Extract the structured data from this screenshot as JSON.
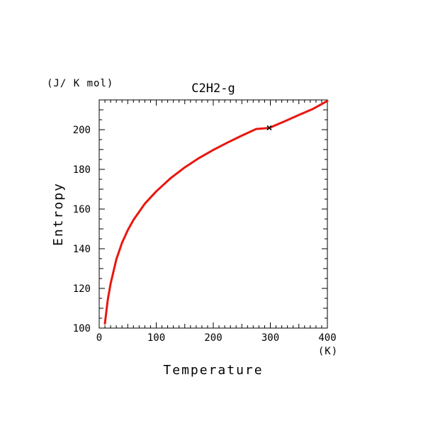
{
  "chart_data": {
    "type": "line",
    "title": "C2H2-g",
    "xlabel": "Temperature",
    "ylabel": "Entropy",
    "x_unit": "(K)",
    "y_unit": "(J/ K mol)",
    "xlim": [
      0,
      400
    ],
    "ylim": [
      100,
      215
    ],
    "x_ticks": [
      0,
      100,
      200,
      300,
      400
    ],
    "y_ticks": [
      100,
      120,
      140,
      160,
      180,
      200
    ],
    "grid": false,
    "line_color": "#e8170f",
    "marker": {
      "x": 298.15,
      "y": 200.9,
      "symbol": "x",
      "color": "#000000"
    },
    "series": [
      {
        "x": [
          10,
          15,
          20,
          30,
          40,
          50,
          60,
          80,
          100,
          125,
          150,
          175,
          200,
          225,
          250,
          275,
          298.15,
          325,
          350,
          375,
          400
        ],
        "y": [
          102.3,
          114.2,
          122.4,
          134.6,
          143.0,
          149.3,
          154.5,
          162.7,
          168.9,
          175.5,
          181.0,
          185.7,
          189.8,
          193.5,
          197.0,
          200.3,
          200.9,
          204.2,
          207.4,
          210.5,
          214.5
        ]
      }
    ]
  }
}
